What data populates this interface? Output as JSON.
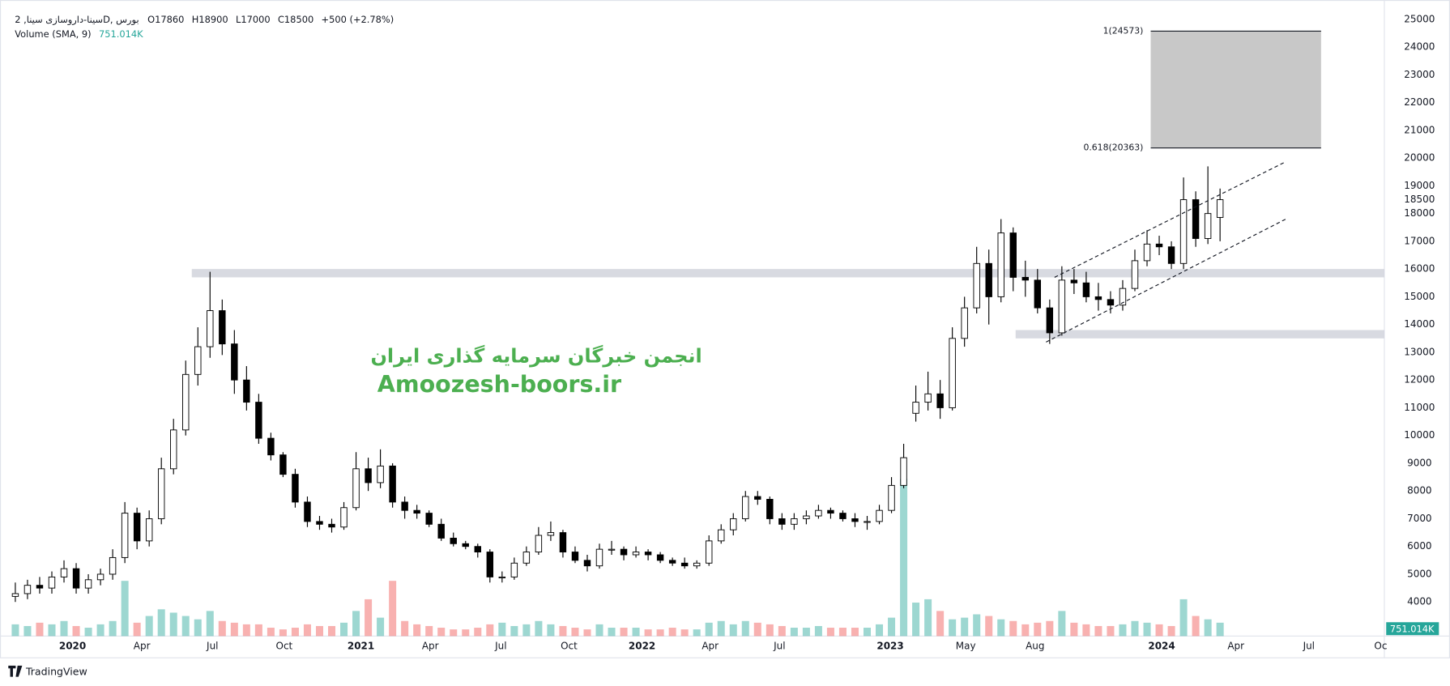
{
  "chart_data": {
    "type": "candlestick",
    "header": {
      "symbol": "سینا-داروسازی سینا, 2D, بورس",
      "open": "O17860",
      "high": "H18900",
      "low": "L17000",
      "close": "C18500",
      "change": "+500 (+2.78%)",
      "volume_name": "Volume (SMA, 9)",
      "volume_value": "751.014K"
    },
    "watermark": [
      "انجمن خبرگان سرمایه گذاری ایران",
      "Amoozesh-boors.ir"
    ],
    "open": [
      4200,
      4300,
      4600,
      4500,
      4900,
      5200,
      4500,
      4800,
      5000,
      5600,
      7200,
      6200,
      7000,
      8800,
      10200,
      12200,
      13200,
      14500,
      13300,
      12000,
      11200,
      9900,
      9300,
      8600,
      7600,
      6900,
      6800,
      6700,
      7400,
      8800,
      8300,
      8900,
      7600,
      7300,
      7200,
      6800,
      6300,
      6100,
      6000,
      5800,
      4900,
      4900,
      5400,
      5800,
      6400,
      6500,
      5800,
      5500,
      5300,
      5900,
      5900,
      5700,
      5800,
      5700,
      5500,
      5400,
      5300,
      5400,
      6200,
      6600,
      7000,
      7800,
      7700,
      7000,
      6800,
      7000,
      7100,
      7300,
      7200,
      7000,
      6900,
      6900,
      7300,
      8200,
      10800,
      11200,
      11500,
      11000,
      13500,
      14600,
      16200,
      15000,
      17300,
      15700,
      15600,
      14600,
      13700,
      15600,
      15500,
      15000,
      14900,
      14700,
      15300,
      16300,
      16900,
      16800,
      16200,
      18500,
      17100,
      17860
    ],
    "high": [
      4700,
      4800,
      4900,
      5100,
      5500,
      5400,
      5000,
      5200,
      5900,
      7600,
      7400,
      7300,
      9200,
      10600,
      12700,
      13900,
      15900,
      14900,
      13800,
      12500,
      11500,
      10100,
      9400,
      8800,
      7800,
      7100,
      7000,
      7600,
      9400,
      9200,
      9500,
      9000,
      7800,
      7500,
      7300,
      7000,
      6500,
      6200,
      6100,
      5900,
      5100,
      5600,
      6000,
      6700,
      6900,
      6600,
      6000,
      5700,
      6100,
      6200,
      6000,
      6000,
      5900,
      5800,
      5600,
      5600,
      5500,
      6400,
      6800,
      7200,
      8000,
      8000,
      7800,
      7200,
      7200,
      7300,
      7500,
      7400,
      7300,
      7200,
      7100,
      7500,
      8500,
      9700,
      11800,
      12300,
      12000,
      13900,
      15000,
      16800,
      16700,
      17800,
      17500,
      16300,
      16000,
      14900,
      16100,
      16000,
      15900,
      15500,
      15200,
      15600,
      16700,
      17400,
      17200,
      17000,
      19300,
      18800,
      19700,
      18900
    ],
    "low": [
      4000,
      4100,
      4300,
      4300,
      4700,
      4300,
      4300,
      4600,
      4800,
      5400,
      5900,
      6000,
      6800,
      8600,
      10000,
      11800,
      12800,
      12900,
      11500,
      10900,
      9700,
      9100,
      8500,
      7400,
      6700,
      6600,
      6500,
      6600,
      7300,
      8000,
      8100,
      7400,
      7000,
      7000,
      6700,
      6200,
      6000,
      5900,
      5600,
      4700,
      4700,
      4800,
      5300,
      5700,
      6200,
      5600,
      5400,
      5100,
      5200,
      5700,
      5500,
      5600,
      5500,
      5400,
      5300,
      5200,
      5200,
      5300,
      6100,
      6400,
      6900,
      7500,
      6800,
      6600,
      6600,
      6800,
      7000,
      7000,
      6900,
      6700,
      6600,
      6800,
      7200,
      8100,
      10500,
      10900,
      10600,
      10900,
      13200,
      14400,
      14000,
      14800,
      15200,
      15000,
      14400,
      13300,
      13600,
      15100,
      14800,
      14500,
      14400,
      14500,
      15200,
      16100,
      16500,
      16000,
      16000,
      16800,
      16900,
      17000
    ],
    "close": [
      4300,
      4600,
      4500,
      4900,
      5200,
      4500,
      4800,
      5000,
      5600,
      7200,
      6200,
      7000,
      8800,
      10200,
      12200,
      13200,
      14500,
      13300,
      12000,
      11200,
      9900,
      9300,
      8600,
      7600,
      6900,
      6800,
      6700,
      7400,
      8800,
      8300,
      8900,
      7600,
      7300,
      7200,
      6800,
      6300,
      6100,
      6000,
      5800,
      4900,
      4900,
      5400,
      5800,
      6400,
      6500,
      5800,
      5500,
      5300,
      5900,
      5900,
      5700,
      5800,
      5700,
      5500,
      5400,
      5300,
      5400,
      6200,
      6600,
      7000,
      7800,
      7700,
      7000,
      6800,
      7000,
      7100,
      7300,
      7200,
      7000,
      6900,
      6900,
      7300,
      8200,
      9200,
      11200,
      11500,
      11000,
      13500,
      14600,
      16200,
      15000,
      17300,
      15700,
      15600,
      14600,
      13700,
      15600,
      15500,
      15000,
      14900,
      14700,
      15300,
      16300,
      16900,
      16800,
      16200,
      18500,
      17100,
      18000,
      18500
    ],
    "volume": [
      700,
      600,
      800,
      700,
      900,
      600,
      500,
      700,
      900,
      3300,
      800,
      1200,
      1600,
      1400,
      1200,
      1000,
      1500,
      900,
      800,
      700,
      700,
      500,
      400,
      500,
      700,
      600,
      600,
      800,
      1500,
      2200,
      1100,
      3300,
      900,
      700,
      600,
      500,
      400,
      400,
      500,
      700,
      800,
      600,
      700,
      900,
      700,
      600,
      500,
      400,
      700,
      500,
      500,
      500,
      400,
      400,
      500,
      400,
      400,
      800,
      900,
      700,
      900,
      800,
      700,
      600,
      500,
      500,
      600,
      500,
      500,
      500,
      500,
      700,
      1100,
      9400,
      2000,
      2200,
      1500,
      1000,
      1100,
      1300,
      1200,
      1000,
      900,
      700,
      800,
      900,
      1500,
      800,
      700,
      600,
      600,
      700,
      900,
      800,
      700,
      600,
      2200,
      1200,
      1000,
      800
    ],
    "xlim": [
      0,
      113
    ],
    "xticks": [
      {
        "value": 5.2,
        "label": "2020"
      },
      {
        "value": 10.9,
        "label": "Apr"
      },
      {
        "value": 16.7,
        "label": "Jul"
      },
      {
        "value": 22.6,
        "label": "Oct"
      },
      {
        "value": 28.9,
        "label": "2021"
      },
      {
        "value": 34.6,
        "label": "Apr"
      },
      {
        "value": 40.4,
        "label": "Jul"
      },
      {
        "value": 46.0,
        "label": "Oct"
      },
      {
        "value": 52.0,
        "label": "2022"
      },
      {
        "value": 57.6,
        "label": "Apr"
      },
      {
        "value": 63.3,
        "label": "Jul"
      },
      {
        "value": 72.4,
        "label": "2023"
      },
      {
        "value": 78.6,
        "label": "May"
      },
      {
        "value": 84.3,
        "label": "Aug"
      },
      {
        "value": 94.7,
        "label": "2024"
      },
      {
        "value": 100.8,
        "label": "Apr"
      },
      {
        "value": 106.8,
        "label": "Jul"
      },
      {
        "value": 112.7,
        "label": "Oc"
      }
    ],
    "ylim": [
      2770,
      25430
    ],
    "yticks": [
      4000,
      5000,
      6000,
      7000,
      8000,
      9000,
      10000,
      11000,
      12000,
      13000,
      14000,
      15000,
      16000,
      17000,
      18000,
      19000,
      20000,
      21000,
      22000,
      23000,
      24000,
      25000
    ],
    "vlim": [
      0,
      10000
    ],
    "zones": [
      {
        "x": 15,
        "from": 15700,
        "to": 16000
      },
      {
        "x": 82.7,
        "from": 13500,
        "to": 13800
      }
    ],
    "channel": [
      {
        "x": [
          85.9,
          104.9
        ],
        "y": [
          15700,
          19867
        ]
      },
      {
        "x": [
          85.2,
          104.9
        ],
        "y": [
          13367,
          17800
        ]
      }
    ],
    "fib": {
      "x": [
        93.8,
        107.8
      ],
      "levels": [
        {
          "value": 24573,
          "label": "1(24573)"
        },
        {
          "value": 20363,
          "label": "0.618(20363)"
        }
      ]
    }
  },
  "footer": {
    "brand": "TradingView"
  }
}
